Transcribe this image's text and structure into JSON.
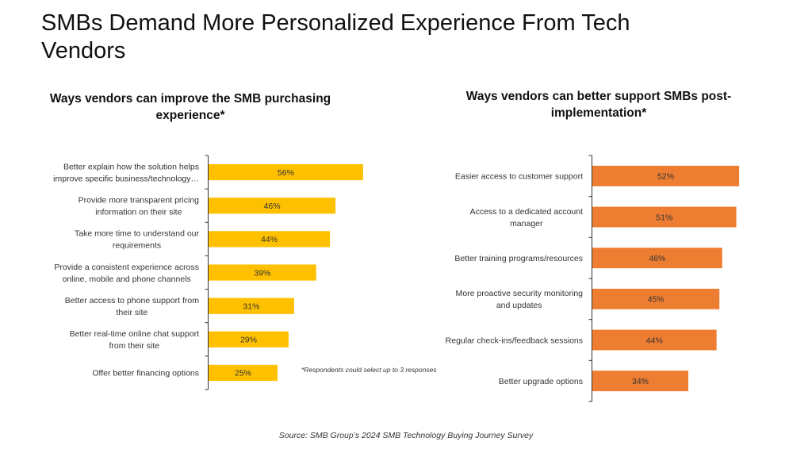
{
  "title": "SMBs Demand More Personalized  Experience From Tech Vendors",
  "footnote": "*Respondents could select up to 3 responses",
  "source": "Source: SMB Group’s 2024 SMB Technology Buying Journey Survey",
  "colors": {
    "left_bar": "#FFC000",
    "right_bar": "#ED7D31",
    "axis": "#333333"
  },
  "chart_data": [
    {
      "type": "bar",
      "orientation": "horizontal",
      "title": "Ways vendors can improve the SMB purchasing experience*",
      "categories": [
        [
          "Better explain how the solution helps",
          "improve specific business/technology…"
        ],
        [
          "Provide more transparent pricing",
          "information on their site"
        ],
        [
          "Take more time to understand our",
          "requirements"
        ],
        [
          "Provide a consistent experience across",
          "online, mobile and phone channels"
        ],
        [
          "Better access to phone support from",
          "their site"
        ],
        [
          "Better real-time online chat support",
          "from their site"
        ],
        [
          "Offer better financing options"
        ]
      ],
      "values": [
        56,
        46,
        44,
        39,
        31,
        29,
        25
      ],
      "value_labels": [
        "56%",
        "46%",
        "44%",
        "39%",
        "31%",
        "29%",
        "25%"
      ],
      "unit": "%",
      "xlim": [
        0,
        60
      ],
      "grid": false,
      "legend": "none"
    },
    {
      "type": "bar",
      "orientation": "horizontal",
      "title": "Ways vendors can better support SMBs post-implementation*",
      "categories": [
        [
          "Easier access to customer support"
        ],
        [
          "Access to a dedicated account",
          "manager"
        ],
        [
          "Better training programs/resources"
        ],
        [
          "More proactive security monitoring",
          "and updates"
        ],
        [
          "Regular check-ins/feedback sessions"
        ],
        [
          "Better upgrade options"
        ]
      ],
      "values": [
        52,
        51,
        46,
        45,
        44,
        34
      ],
      "value_labels": [
        "52%",
        "51%",
        "46%",
        "45%",
        "44%",
        "34%"
      ],
      "unit": "%",
      "xlim": [
        0,
        55
      ],
      "grid": false,
      "legend": "none"
    }
  ]
}
